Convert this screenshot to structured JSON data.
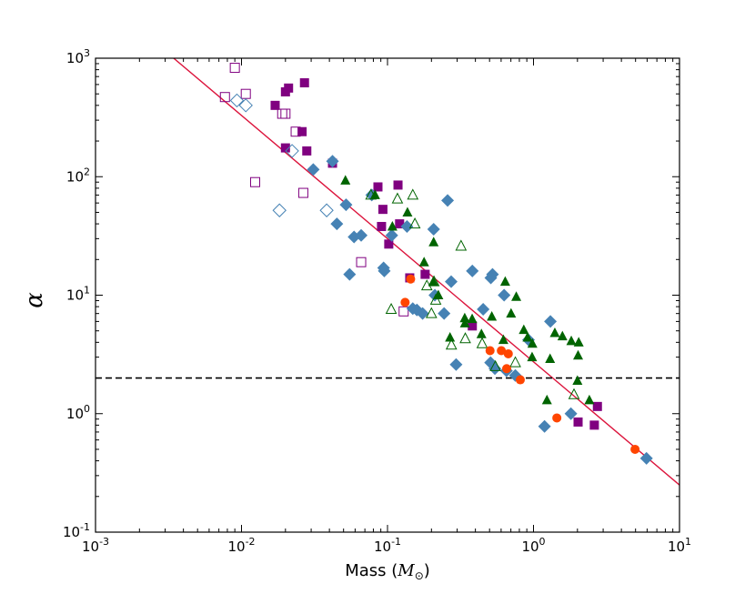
{
  "chart_data": {
    "type": "scatter",
    "title": "",
    "xscale": "log",
    "yscale": "log",
    "xlim": [
      0.001,
      10
    ],
    "ylim": [
      0.1,
      1000
    ],
    "xticks": [
      {
        "value": 0.001,
        "base": "10",
        "exp": "-3"
      },
      {
        "value": 0.01,
        "base": "10",
        "exp": "-2"
      },
      {
        "value": 0.1,
        "base": "10",
        "exp": "-1"
      },
      {
        "value": 1,
        "base": "10",
        "exp": "0"
      },
      {
        "value": 10,
        "base": "10",
        "exp": "1"
      }
    ],
    "yticks": [
      {
        "value": 0.1,
        "base": "10",
        "exp": "-1"
      },
      {
        "value": 1,
        "base": "10",
        "exp": "0"
      },
      {
        "value": 10,
        "base": "10",
        "exp": "1"
      },
      {
        "value": 100,
        "base": "10",
        "exp": "2"
      },
      {
        "value": 1000,
        "base": "10",
        "exp": "3"
      }
    ],
    "xlabel": {
      "text": "Mass (",
      "symbol": "M",
      "sub": "⊙",
      "close": ")"
    },
    "ylabel": "α",
    "reference_lines": [
      {
        "name": "power-law-fit",
        "type": "line",
        "color": "#dc143c",
        "x": [
          0.00343,
          10
        ],
        "y": [
          1000,
          0.25
        ]
      },
      {
        "name": "alpha-2-threshold",
        "type": "hline",
        "y": 2,
        "color": "#000000",
        "style": "dashed"
      }
    ],
    "series": [
      {
        "name": "filled-squares",
        "marker": "square",
        "filled": true,
        "color": "#800080",
        "points": [
          [
            0.027,
            620
          ],
          [
            0.021,
            560
          ],
          [
            0.02,
            520
          ],
          [
            0.017,
            400
          ],
          [
            0.026,
            240
          ],
          [
            0.02,
            175
          ],
          [
            0.028,
            165
          ],
          [
            0.042,
            130
          ],
          [
            0.086,
            82
          ],
          [
            0.118,
            85
          ],
          [
            0.093,
            53
          ],
          [
            0.091,
            38
          ],
          [
            0.121,
            40
          ],
          [
            0.102,
            27
          ],
          [
            0.181,
            15
          ],
          [
            0.142,
            14
          ],
          [
            0.381,
            5.5
          ],
          [
            2.02,
            0.85
          ],
          [
            2.61,
            0.8
          ],
          [
            2.74,
            1.15
          ]
        ]
      },
      {
        "name": "open-squares",
        "marker": "square",
        "filled": false,
        "color": "#800080",
        "points": [
          [
            0.009,
            830
          ],
          [
            0.0077,
            470
          ],
          [
            0.0107,
            500
          ],
          [
            0.02,
            340
          ],
          [
            0.019,
            340
          ],
          [
            0.0235,
            240
          ],
          [
            0.0124,
            90
          ],
          [
            0.0265,
            73
          ],
          [
            0.066,
            19
          ],
          [
            0.129,
            7.3
          ]
        ]
      },
      {
        "name": "filled-diamonds",
        "marker": "diamond",
        "filled": true,
        "color": "#4682b4",
        "points": [
          [
            0.031,
            115
          ],
          [
            0.042,
            135
          ],
          [
            0.052,
            58
          ],
          [
            0.045,
            40
          ],
          [
            0.055,
            15
          ],
          [
            0.059,
            31
          ],
          [
            0.066,
            32
          ],
          [
            0.078,
            70
          ],
          [
            0.094,
            17
          ],
          [
            0.095,
            16
          ],
          [
            0.107,
            32
          ],
          [
            0.136,
            38
          ],
          [
            0.149,
            7.7
          ],
          [
            0.159,
            7.5
          ],
          [
            0.174,
            7
          ],
          [
            0.207,
            36
          ],
          [
            0.211,
            10
          ],
          [
            0.244,
            7
          ],
          [
            0.258,
            63
          ],
          [
            0.273,
            13
          ],
          [
            0.295,
            2.6
          ],
          [
            0.381,
            16
          ],
          [
            0.452,
            7.6
          ],
          [
            0.524,
            15
          ],
          [
            0.51,
            14
          ],
          [
            0.508,
            2.7
          ],
          [
            0.544,
            2.4
          ],
          [
            0.629,
            10
          ],
          [
            0.653,
            2.3
          ],
          [
            0.751,
            2.1
          ],
          [
            0.924,
            4.2
          ],
          [
            1.306,
            6
          ],
          [
            1.19,
            0.78
          ],
          [
            1.804,
            1.0
          ],
          [
            5.94,
            0.42
          ]
        ]
      },
      {
        "name": "open-diamonds",
        "marker": "diamond",
        "filled": false,
        "color": "#4682b4",
        "points": [
          [
            0.0093,
            440
          ],
          [
            0.0107,
            400
          ],
          [
            0.0222,
            165
          ],
          [
            0.0182,
            52
          ],
          [
            0.0383,
            52
          ]
        ]
      },
      {
        "name": "filled-triangles",
        "marker": "triangle",
        "filled": true,
        "color": "#006400",
        "points": [
          [
            0.0515,
            93
          ],
          [
            0.0822,
            70
          ],
          [
            0.108,
            38
          ],
          [
            0.137,
            50
          ],
          [
            0.178,
            19
          ],
          [
            0.206,
            13
          ],
          [
            0.207,
            28
          ],
          [
            0.223,
            10
          ],
          [
            0.268,
            4.4
          ],
          [
            0.338,
            6.4
          ],
          [
            0.339,
            5.8
          ],
          [
            0.38,
            6.3
          ],
          [
            0.44,
            4.7
          ],
          [
            0.518,
            6.6
          ],
          [
            0.622,
            4.2
          ],
          [
            0.64,
            13
          ],
          [
            0.702,
            7
          ],
          [
            0.762,
            9.7
          ],
          [
            0.858,
            5.1
          ],
          [
            0.91,
            4.4
          ],
          [
            0.983,
            3.9
          ],
          [
            0.978,
            3.0
          ],
          [
            1.236,
            1.3
          ],
          [
            1.299,
            2.9
          ],
          [
            1.4,
            4.8
          ],
          [
            1.578,
            4.5
          ],
          [
            1.815,
            4.1
          ],
          [
            2.0,
            1.9
          ],
          [
            2.02,
            3.1
          ],
          [
            2.04,
            4.0
          ],
          [
            2.413,
            1.3
          ]
        ]
      },
      {
        "name": "open-triangles",
        "marker": "triangle",
        "filled": false,
        "color": "#006400",
        "points": [
          [
            0.077,
            70
          ],
          [
            0.106,
            7.6
          ],
          [
            0.117,
            65
          ],
          [
            0.149,
            70
          ],
          [
            0.154,
            40
          ],
          [
            0.186,
            12
          ],
          [
            0.2,
            7
          ],
          [
            0.214,
            9.1
          ],
          [
            0.208,
            13
          ],
          [
            0.274,
            3.8
          ],
          [
            0.319,
            26
          ],
          [
            0.341,
            4.3
          ],
          [
            0.445,
            3.9
          ],
          [
            0.548,
            2.5
          ],
          [
            0.751,
            2.7
          ],
          [
            1.894,
            1.45
          ]
        ]
      },
      {
        "name": "filled-circles",
        "marker": "circle",
        "filled": true,
        "color": "#ff4500",
        "points": [
          [
            0.132,
            8.7
          ],
          [
            0.144,
            13.7
          ],
          [
            0.504,
            3.4
          ],
          [
            0.602,
            3.4
          ],
          [
            0.655,
            2.4
          ],
          [
            0.672,
            3.2
          ],
          [
            0.812,
            1.93
          ],
          [
            1.445,
            0.92
          ],
          [
            4.96,
            0.5
          ]
        ]
      }
    ]
  }
}
